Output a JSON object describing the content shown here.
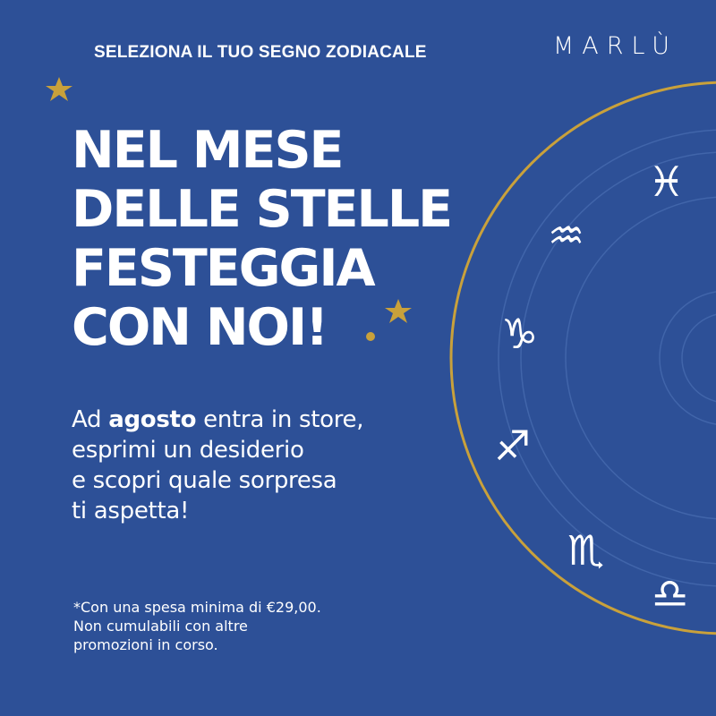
{
  "header": {
    "tagline": "SELEZIONA IL TUO SEGNO ZODIACALE",
    "logo": "MARLÙ"
  },
  "headline": [
    "NEL MESE",
    "DELLE STELLE",
    "FESTEGGIA",
    "CON NOI!"
  ],
  "body": {
    "pre": "Ad ",
    "bold": "agosto",
    "post": " entra in store,",
    "line2": "esprimi un desiderio",
    "line3": "e scopri quale sorpresa",
    "line4": "ti aspetta!"
  },
  "fine_print": [
    "*Con una spesa minima di €29,00.",
    "Non cumulabili con altre",
    "promozioni in corso."
  ],
  "zodiac": [
    {
      "name": "pisces",
      "glyph": "♓︎"
    },
    {
      "name": "aquarius",
      "glyph": "♒︎"
    },
    {
      "name": "capricorn",
      "glyph": "♑︎"
    },
    {
      "name": "sagittarius",
      "glyph": "♐︎"
    },
    {
      "name": "scorpio",
      "glyph": "♏︎"
    },
    {
      "name": "libra",
      "glyph": "♎︎"
    }
  ],
  "colors": {
    "background": "#2d5097",
    "gold": "#c9a13b",
    "ring": "#4165aa"
  }
}
